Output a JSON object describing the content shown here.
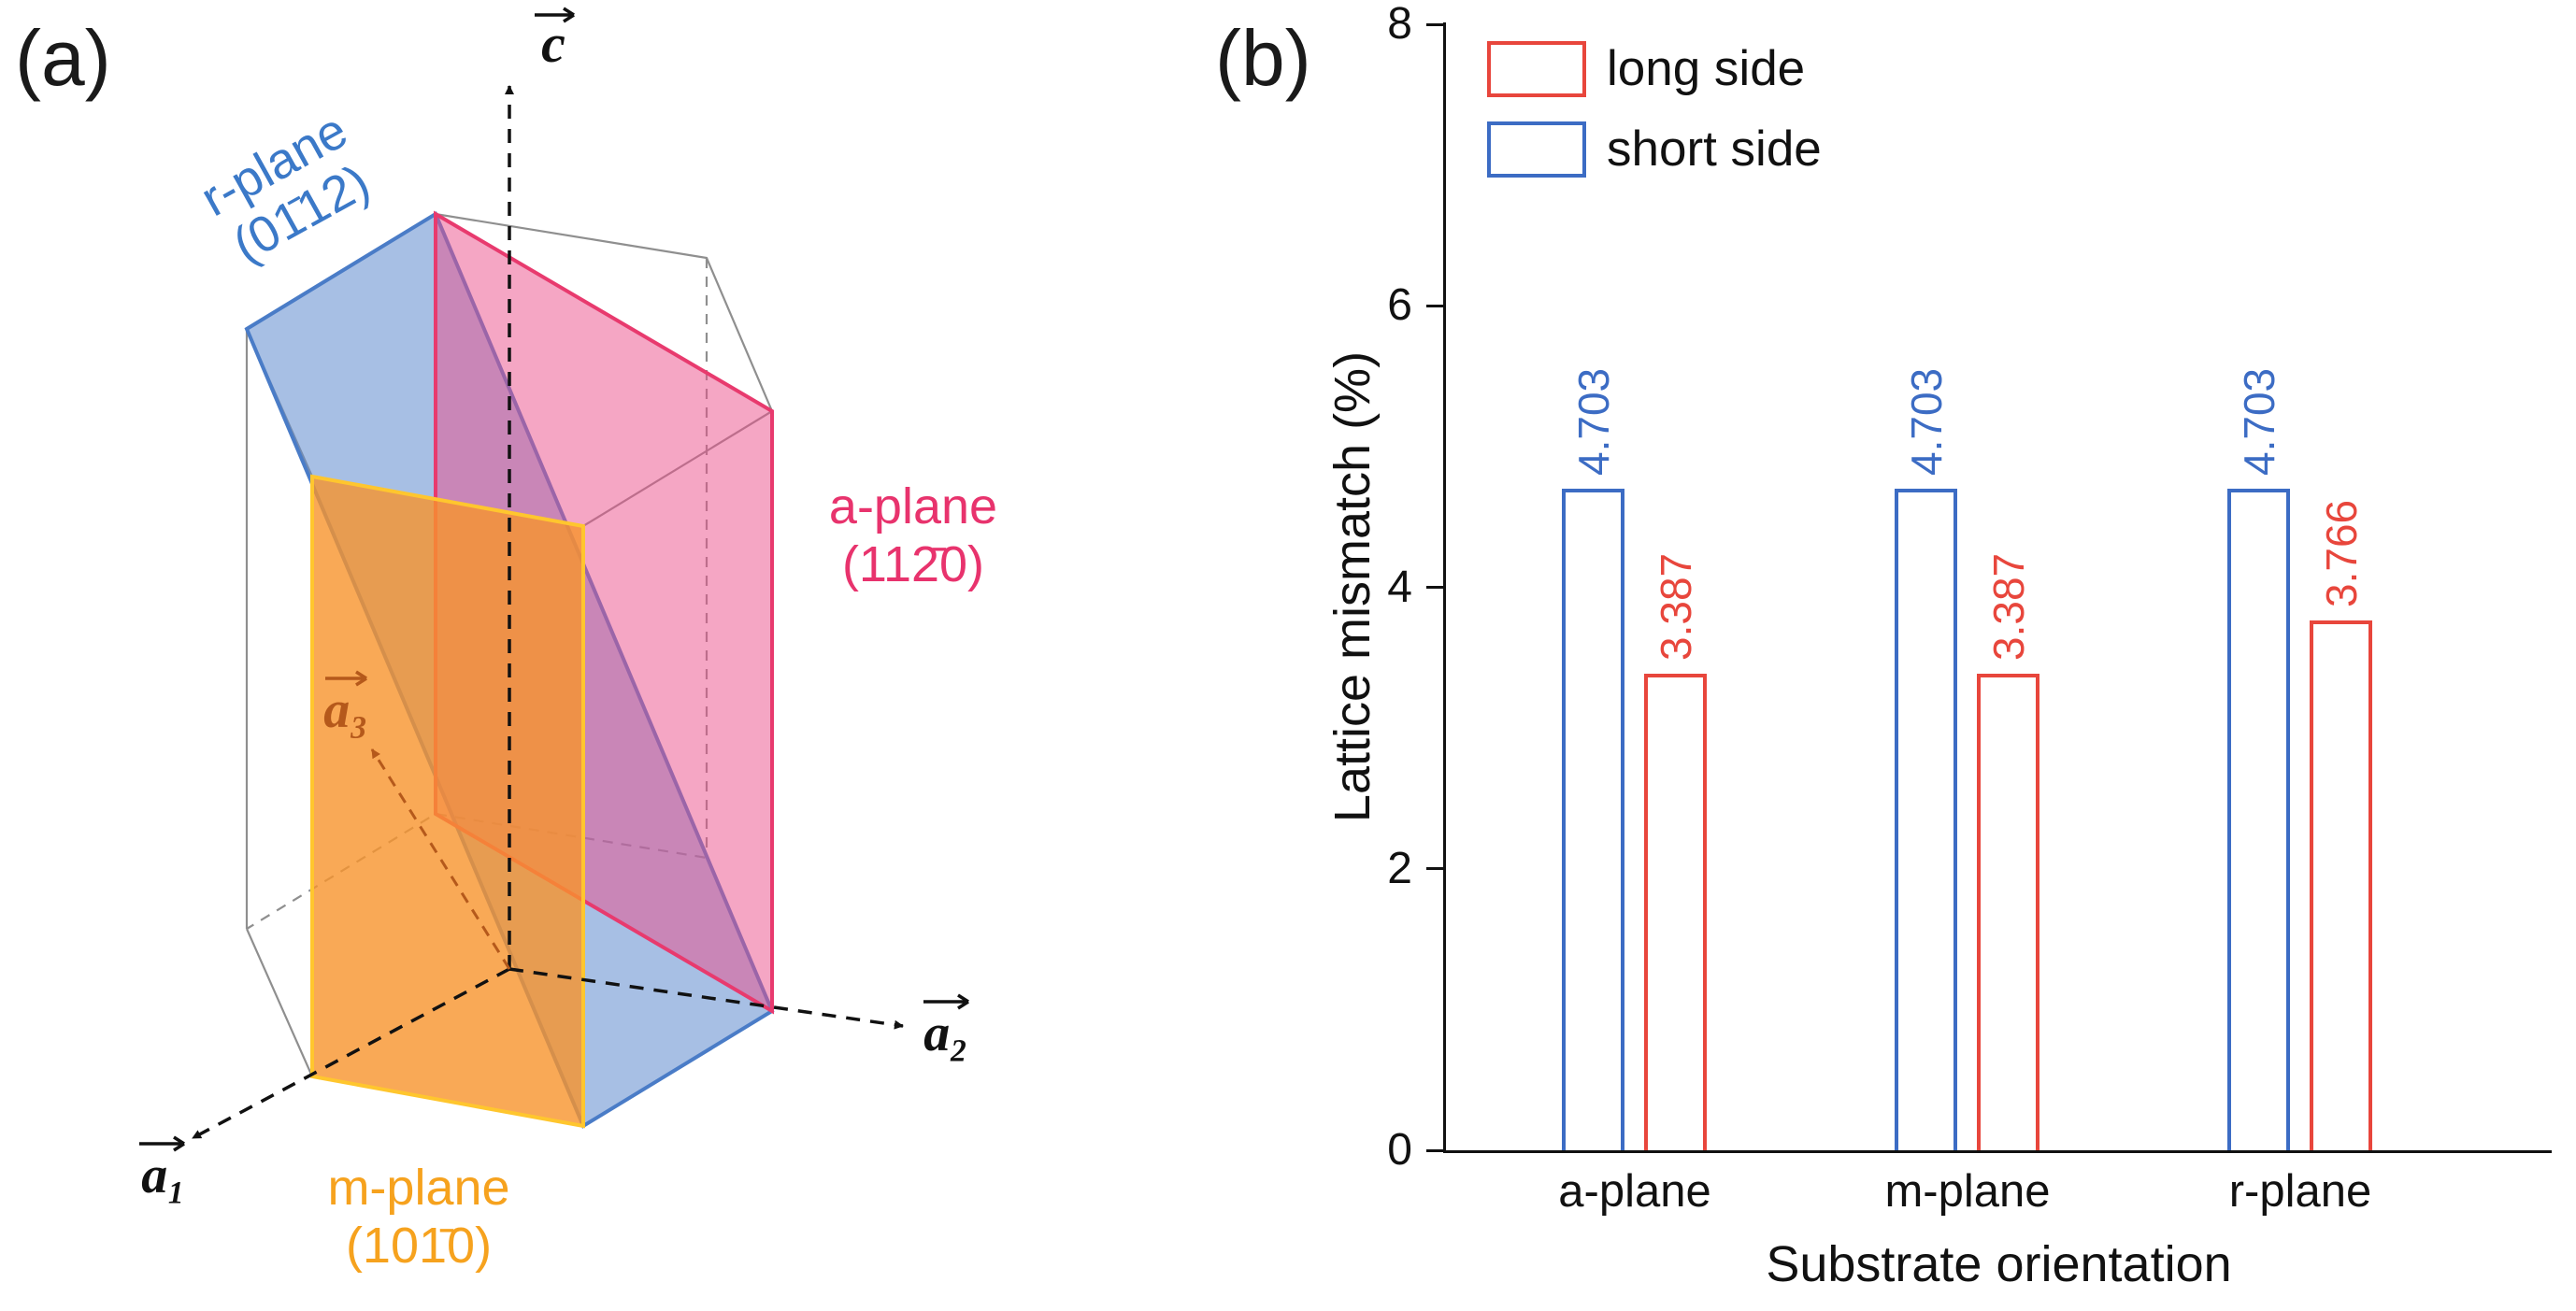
{
  "panel_a": {
    "label": "(a)",
    "planes": {
      "r": {
        "name": "r-plane",
        "miller": "(01̄12)",
        "stroke": "#4A7CC7",
        "fill": "rgba(95,138,205,0.55)",
        "label_color": "#3B79C8"
      },
      "a": {
        "name": "a-plane",
        "miller": "(112̄0)",
        "stroke": "#E83A6E",
        "fill": "rgba(235,77,138,0.5)",
        "label_color": "#E8336D"
      },
      "m": {
        "name": "m-plane",
        "miller": "(101̄0)",
        "stroke": "#FFC62E",
        "fill": "rgba(247,148,44,0.8)",
        "label_color": "#F6A21E"
      }
    },
    "axes": {
      "c": "c",
      "a1": "a₁",
      "a2": "a₂",
      "a3": "a₃"
    },
    "a3_color": "#B5591B"
  },
  "panel_b": {
    "label": "(b)"
  },
  "chart_data": {
    "type": "bar",
    "categories": [
      "a-plane",
      "m-plane",
      "r-plane"
    ],
    "series": [
      {
        "name": "long side",
        "color": "#E8463C",
        "values": [
          3.387,
          3.387,
          3.766
        ]
      },
      {
        "name": "short side",
        "color": "#3C6CC4",
        "values": [
          4.703,
          4.703,
          4.703
        ]
      }
    ],
    "title": "",
    "xlabel": "Substrate orientation",
    "ylabel": "Lattice mismatch (%)",
    "ylim": [
      0,
      8
    ],
    "yticks": [
      0,
      2,
      4,
      6,
      8
    ],
    "grid": false,
    "legend_position": "top-left",
    "bar_fill": "#FFFFFF",
    "value_label_decimals": 3
  }
}
